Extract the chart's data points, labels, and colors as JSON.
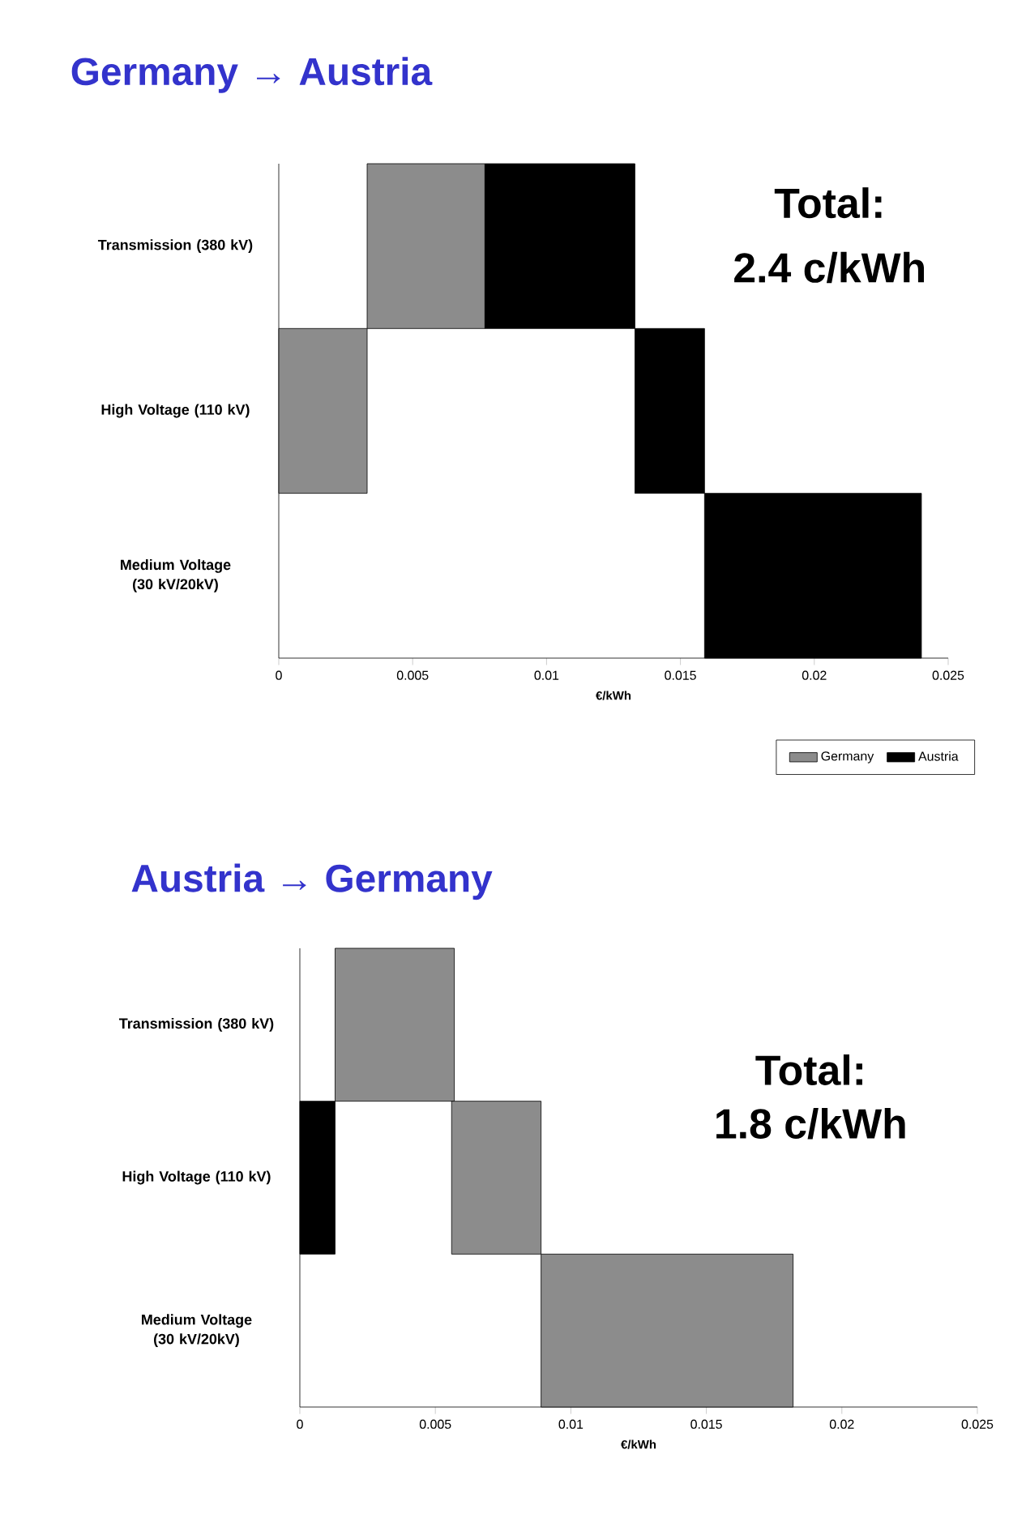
{
  "chart_data": [
    {
      "type": "bar",
      "orientation": "horizontal",
      "title": "Germany → Austria",
      "xlabel": "€/kWh",
      "categories": [
        "Transmission (380 kV)",
        "High Voltage (110 kV)",
        "Medium Voltage (30 kV/20kV)"
      ],
      "series": [
        {
          "name": "Germany",
          "color": "#8c8c8c",
          "values": [
            0.0044,
            0.0033,
            null
          ],
          "base": [
            0.0033,
            0,
            null
          ]
        },
        {
          "name": "Austria",
          "color": "#000000",
          "values": [
            0.0056,
            0.0026,
            0.0081
          ],
          "base": [
            0.0077,
            0.0133,
            0.0159
          ]
        }
      ],
      "xlim": [
        0,
        0.025
      ],
      "xticks": [
        0,
        0.005,
        0.01,
        0.015,
        0.02,
        0.025
      ],
      "legend": "bottom right",
      "annotations": [
        "Total:",
        "2.4 c/kWh"
      ]
    },
    {
      "type": "bar",
      "orientation": "horizontal",
      "title": "Austria → Germany",
      "xlabel": "€/kWh",
      "categories": [
        "Transmission (380 kV)",
        "High Voltage (110 kV)",
        "Medium Voltage (30 kV/20kV)"
      ],
      "series": [
        {
          "color": "#8c8c8c",
          "values": [
            0.0044,
            0.0033,
            0.0093
          ],
          "base": [
            0.0013,
            0.0056,
            0.0089
          ]
        },
        {
          "color": "#000000",
          "values": [
            null,
            0.0013,
            null
          ],
          "base": [
            null,
            0,
            null
          ]
        }
      ],
      "xlim": [
        0,
        0.025
      ],
      "xticks": [
        0,
        0.005,
        0.01,
        0.015,
        0.02,
        0.025
      ],
      "annotations": [
        "Total:",
        "1.8 c/kWh"
      ]
    }
  ]
}
